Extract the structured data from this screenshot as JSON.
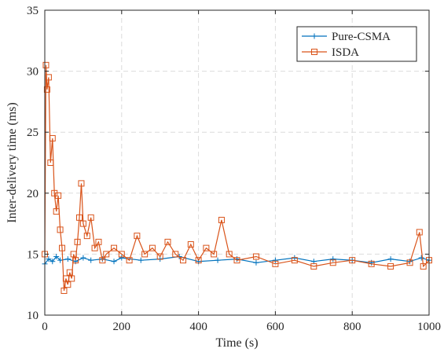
{
  "chart_data": {
    "type": "line",
    "title": "",
    "xlabel": "Time (s)",
    "ylabel": "Inter-delivery time (ms)",
    "xlim": [
      0,
      1000
    ],
    "ylim": [
      10,
      35
    ],
    "xticks": [
      0,
      200,
      400,
      600,
      800,
      1000
    ],
    "yticks": [
      10,
      15,
      20,
      25,
      30,
      35
    ],
    "grid": true,
    "legend_position": "top-right",
    "series": [
      {
        "name": "Pure-CSMA",
        "color": "#0072bd",
        "marker": "plus",
        "x": [
          0,
          10,
          20,
          30,
          40,
          60,
          80,
          100,
          120,
          150,
          180,
          200,
          250,
          300,
          350,
          400,
          450,
          500,
          550,
          600,
          650,
          700,
          750,
          800,
          850,
          900,
          950,
          980,
          1000
        ],
        "y": [
          14.2,
          14.6,
          14.4,
          14.8,
          14.5,
          14.6,
          14.4,
          14.7,
          14.5,
          14.6,
          14.4,
          14.7,
          14.5,
          14.6,
          14.8,
          14.4,
          14.5,
          14.6,
          14.3,
          14.5,
          14.7,
          14.4,
          14.6,
          14.5,
          14.3,
          14.6,
          14.4,
          14.7,
          14.5
        ]
      },
      {
        "name": "ISDA",
        "color": "#d95319",
        "marker": "square",
        "x": [
          0,
          3,
          6,
          10,
          15,
          20,
          25,
          30,
          35,
          40,
          45,
          50,
          55,
          60,
          65,
          70,
          75,
          80,
          85,
          90,
          95,
          100,
          110,
          120,
          130,
          140,
          150,
          160,
          180,
          200,
          220,
          240,
          260,
          280,
          300,
          320,
          340,
          360,
          380,
          400,
          420,
          440,
          460,
          480,
          500,
          550,
          600,
          650,
          700,
          750,
          800,
          850,
          900,
          950,
          975,
          985,
          1000
        ],
        "y": [
          15.0,
          30.5,
          28.5,
          29.5,
          22.5,
          24.5,
          20.0,
          18.5,
          19.8,
          17.0,
          15.5,
          12.0,
          13.0,
          12.5,
          13.5,
          13.0,
          15.0,
          14.5,
          16.0,
          18.0,
          20.8,
          17.5,
          16.5,
          18.0,
          15.5,
          16.0,
          14.5,
          15.0,
          15.5,
          15.0,
          14.5,
          16.5,
          15.0,
          15.5,
          14.8,
          16.0,
          15.0,
          14.5,
          15.8,
          14.5,
          15.5,
          15.0,
          17.8,
          15.0,
          14.5,
          14.8,
          14.2,
          14.5,
          14.0,
          14.3,
          14.5,
          14.2,
          14.0,
          14.3,
          16.8,
          14.0,
          14.5
        ]
      }
    ]
  }
}
